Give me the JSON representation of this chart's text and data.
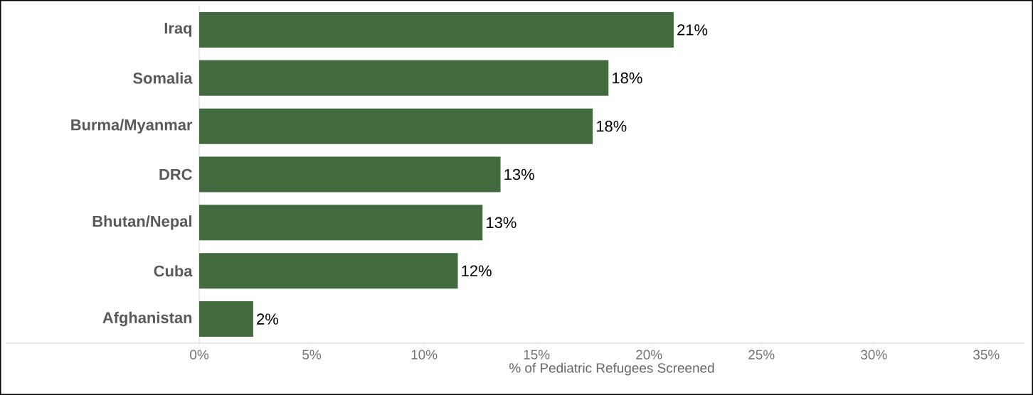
{
  "chart_data": {
    "type": "bar",
    "orientation": "horizontal",
    "xlabel": "% of Pediatric Refugees Screened",
    "categories": [
      "Iraq",
      "Somalia",
      "Burma/Myanmar",
      "DRC",
      "Bhutan/Nepal",
      "Cuba",
      "Afghanistan"
    ],
    "values": [
      21.1,
      18.2,
      17.5,
      13.4,
      12.6,
      11.5,
      2.4
    ],
    "value_labels": [
      "21%",
      "18%",
      "18%",
      "13%",
      "13%",
      "12%",
      "2%"
    ],
    "color": "#426a3e",
    "xlim": [
      0,
      36.7
    ],
    "xticks": [
      {
        "value": 0,
        "label": "0%"
      },
      {
        "value": 5,
        "label": "5%"
      },
      {
        "value": 10,
        "label": "10%"
      },
      {
        "value": 15,
        "label": "15%"
      },
      {
        "value": 20,
        "label": "20%"
      },
      {
        "value": 25,
        "label": "25%"
      },
      {
        "value": 30,
        "label": "30%"
      },
      {
        "value": 35,
        "label": "35%"
      }
    ],
    "grid": false
  }
}
